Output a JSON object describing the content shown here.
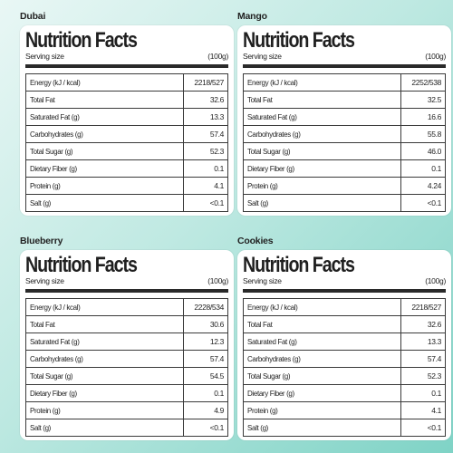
{
  "panels": [
    {
      "flavor": "Dubai",
      "title": "Nutrition Facts",
      "serving_label": "Serving size",
      "serving_amount": "(100g)",
      "rows": [
        {
          "label": "Energy (kJ / kcal)",
          "value": "2218/527"
        },
        {
          "label": "Total Fat",
          "value": "32.6"
        },
        {
          "label": "Saturated Fat (g)",
          "value": "13.3"
        },
        {
          "label": "Carbohydrates (g)",
          "value": "57.4"
        },
        {
          "label": "Total Sugar (g)",
          "value": "52.3"
        },
        {
          "label": "Dietary Fiber (g)",
          "value": "0.1"
        },
        {
          "label": "Protein (g)",
          "value": "4.1"
        },
        {
          "label": "Salt (g)",
          "value": "<0.1"
        }
      ]
    },
    {
      "flavor": "Mango",
      "title": "Nutrition Facts",
      "serving_label": "Serving size",
      "serving_amount": "(100g)",
      "rows": [
        {
          "label": "Energy (kJ / kcal)",
          "value": "2252/538"
        },
        {
          "label": "Total Fat",
          "value": "32.5"
        },
        {
          "label": "Saturated Fat (g)",
          "value": "16.6"
        },
        {
          "label": "Carbohydrates (g)",
          "value": "55.8"
        },
        {
          "label": "Total Sugar (g)",
          "value": "46.0"
        },
        {
          "label": "Dietary Fiber (g)",
          "value": "0.1"
        },
        {
          "label": "Protein (g)",
          "value": "4.24"
        },
        {
          "label": "Salt (g)",
          "value": "<0.1"
        }
      ]
    },
    {
      "flavor": "Blueberry",
      "title": "Nutrition Facts",
      "serving_label": "Serving size",
      "serving_amount": "(100g)",
      "rows": [
        {
          "label": "Energy (kJ / kcal)",
          "value": "2228/534"
        },
        {
          "label": "Total Fat",
          "value": "30.6"
        },
        {
          "label": "Saturated Fat (g)",
          "value": "12.3"
        },
        {
          "label": "Carbohydrates (g)",
          "value": "57.4"
        },
        {
          "label": "Total Sugar (g)",
          "value": "54.5"
        },
        {
          "label": "Dietary Fiber (g)",
          "value": "0.1"
        },
        {
          "label": "Protein (g)",
          "value": "4.9"
        },
        {
          "label": "Salt (g)",
          "value": "<0.1"
        }
      ]
    },
    {
      "flavor": "Cookies",
      "title": "Nutrition Facts",
      "serving_label": "Serving size",
      "serving_amount": "(100g)",
      "rows": [
        {
          "label": "Energy (kJ / kcal)",
          "value": "2218/527"
        },
        {
          "label": "Total Fat",
          "value": "32.6"
        },
        {
          "label": "Saturated Fat (g)",
          "value": "13.3"
        },
        {
          "label": "Carbohydrates (g)",
          "value": "57.4"
        },
        {
          "label": "Total Sugar (g)",
          "value": "52.3"
        },
        {
          "label": "Dietary Fiber (g)",
          "value": "0.1"
        },
        {
          "label": "Protein (g)",
          "value": "4.1"
        },
        {
          "label": "Salt (g)",
          "value": "<0.1"
        }
      ]
    }
  ]
}
